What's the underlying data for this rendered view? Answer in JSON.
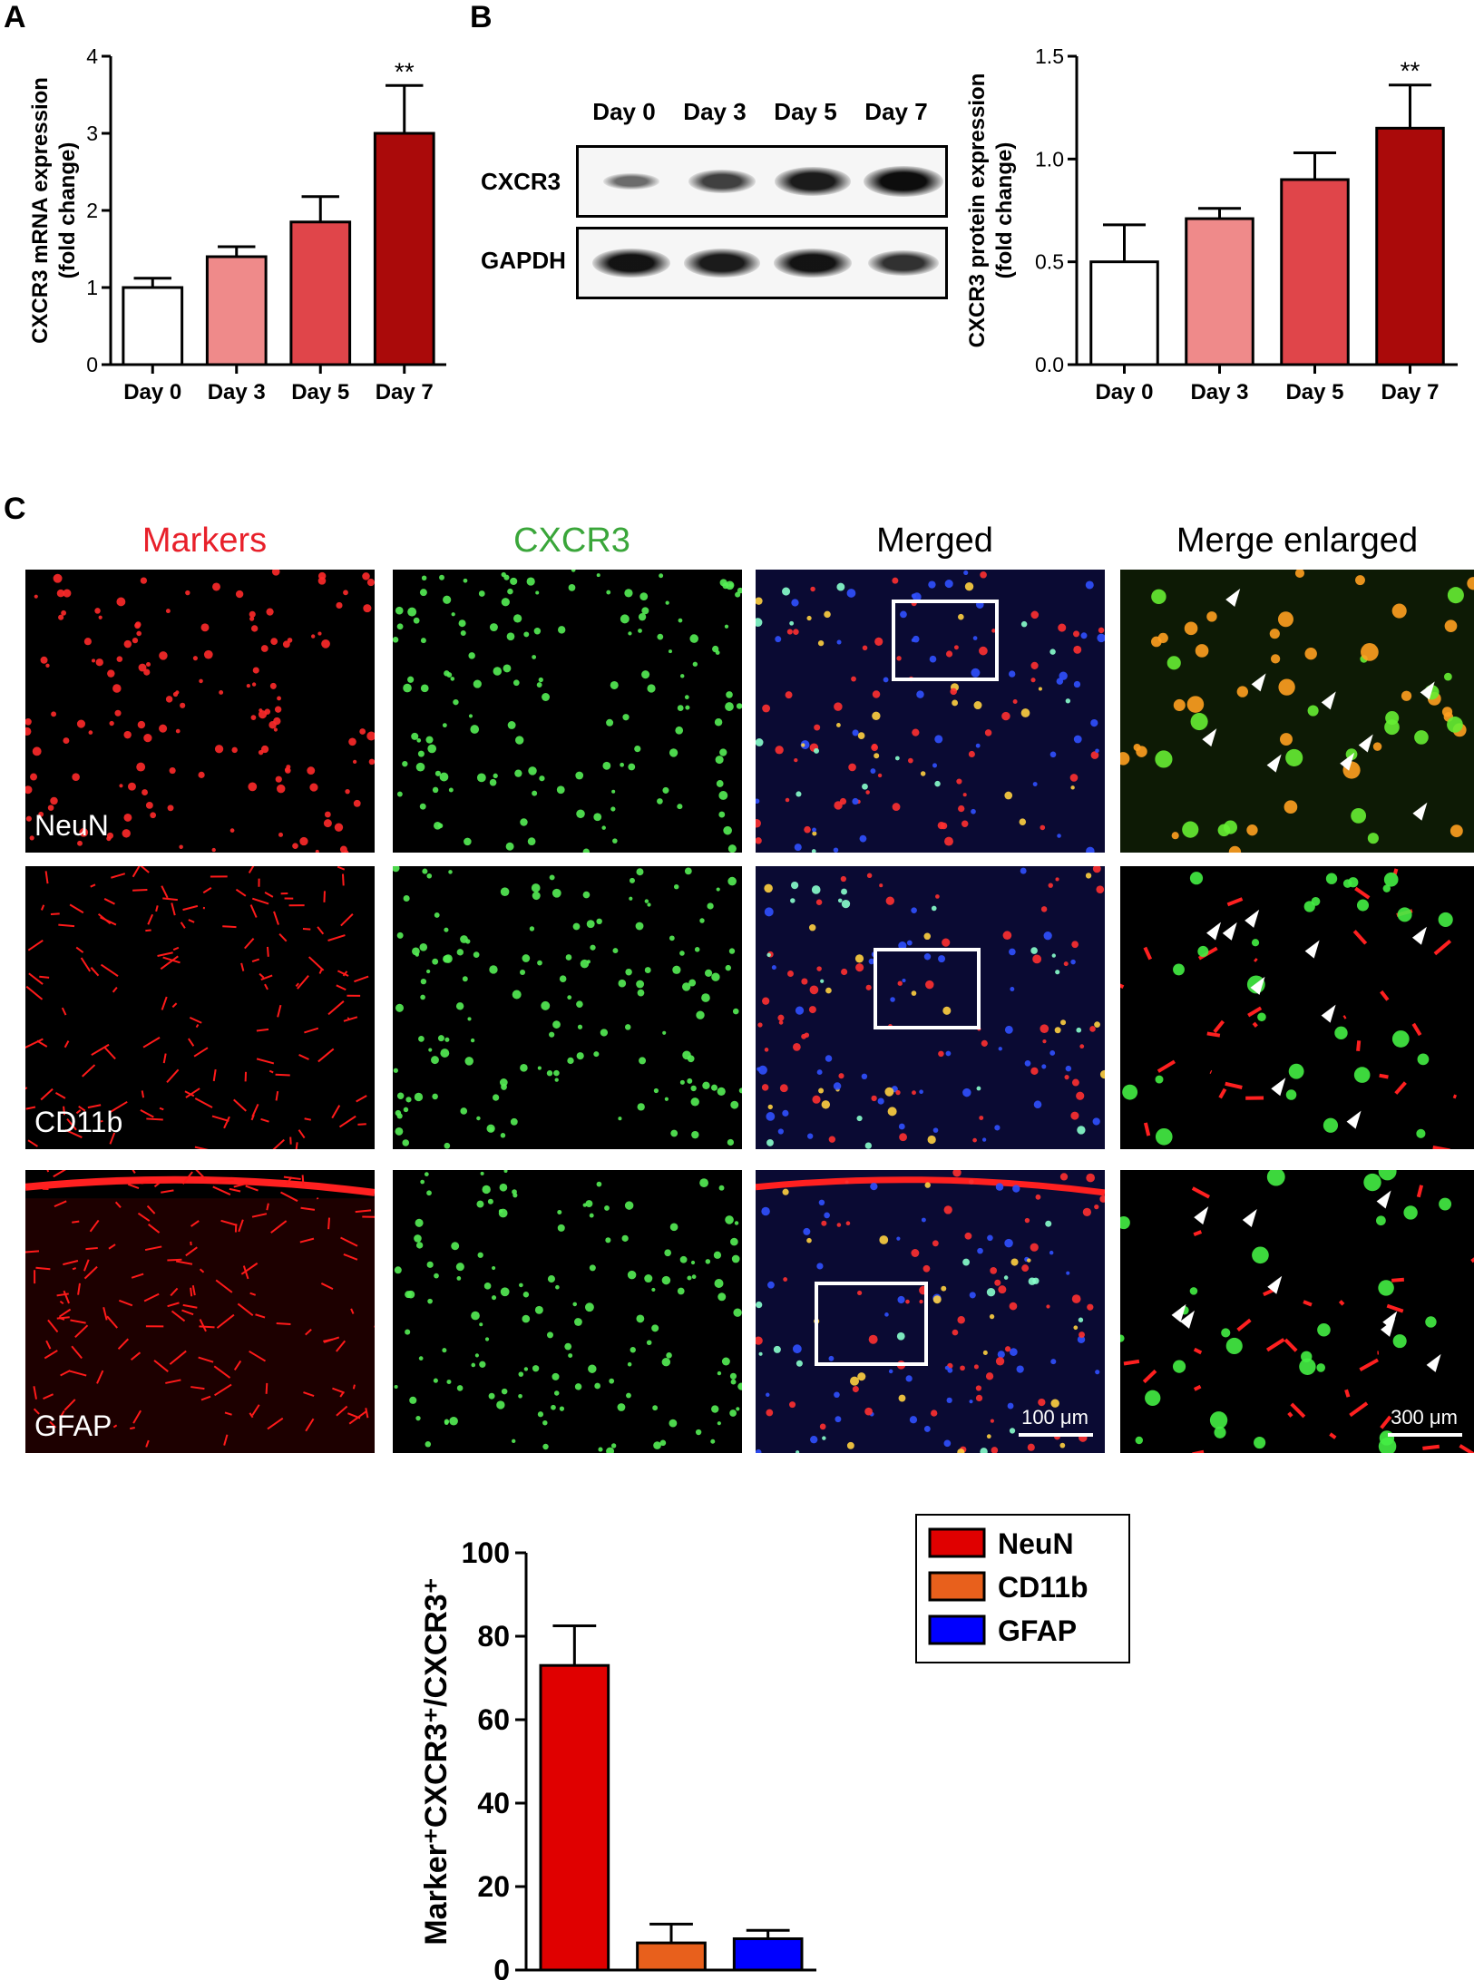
{
  "panels": {
    "a": {
      "label": "A"
    },
    "b": {
      "label": "B"
    },
    "c": {
      "label": "C"
    }
  },
  "chart_data": [
    {
      "type": "bar",
      "panel": "A",
      "categories": [
        "Day 0",
        "Day 3",
        "Day 5",
        "Day 7"
      ],
      "values": [
        1.0,
        1.4,
        1.85,
        3.0
      ],
      "errors": [
        0.12,
        0.13,
        0.33,
        0.62
      ],
      "colors": [
        "#ffffff",
        "#ef8a8a",
        "#e0454a",
        "#aa0a0a"
      ],
      "annotations": [
        "",
        "",
        "",
        "**"
      ],
      "ylabel_lines": [
        "CXCR3  mRNA expression",
        "(fold change)"
      ],
      "ylim": [
        0,
        4
      ],
      "yticks": [
        0,
        1,
        2,
        3,
        4
      ]
    },
    {
      "type": "bar",
      "panel": "B",
      "categories": [
        "Day 0",
        "Day 3",
        "Day 5",
        "Day 7"
      ],
      "values": [
        0.5,
        0.71,
        0.9,
        1.15
      ],
      "errors": [
        0.18,
        0.05,
        0.13,
        0.21
      ],
      "colors": [
        "#ffffff",
        "#ef8a8a",
        "#e0454a",
        "#aa0a0a"
      ],
      "annotations": [
        "",
        "",
        "",
        "**"
      ],
      "ylabel_lines": [
        "CXCR3  protein expression",
        "(fold change)"
      ],
      "ylim": [
        0,
        1.5
      ],
      "yticks": [
        "0.0",
        "0.5",
        "1.0",
        "1.5"
      ]
    },
    {
      "type": "bar",
      "panel": "C-quantification",
      "categories": [
        "NeuN",
        "CD11b",
        "GFAP"
      ],
      "values": [
        73,
        6.5,
        7.5
      ],
      "errors": [
        9.5,
        4.5,
        2
      ],
      "colors": [
        "#e00000",
        "#e8601c",
        "#0000ff"
      ],
      "ylabel": "Marker⁺CXCR3⁺/CXCR3⁺",
      "ylim": [
        0,
        100
      ],
      "yticks": [
        0,
        20,
        40,
        60,
        80,
        100
      ],
      "legend": [
        {
          "name": "NeuN",
          "color": "#e00000"
        },
        {
          "name": "CD11b",
          "color": "#e8601c"
        },
        {
          "name": "GFAP",
          "color": "#0000ff"
        }
      ],
      "legend_position": "top-right"
    }
  ],
  "western_blot": {
    "lanes": [
      "Day 0",
      "Day 3",
      "Day 5",
      "Day 7"
    ],
    "proteins": [
      "CXCR3",
      "GAPDH"
    ],
    "cxcr3_intensity": [
      0.35,
      0.65,
      0.9,
      1.0
    ],
    "gapdh_intensity": [
      0.95,
      0.9,
      0.95,
      0.75
    ]
  },
  "microscopy": {
    "column_titles": [
      {
        "text": "Markers",
        "color": "#e8202a"
      },
      {
        "text": "CXCR3",
        "color": "#3aa63a"
      },
      {
        "text": "Merged",
        "color": "#000000"
      },
      {
        "text": "Merge enlarged",
        "color": "#000000"
      }
    ],
    "row_labels": [
      "NeuN",
      "CD11b",
      "GFAP"
    ],
    "scale_bars": [
      "100 μm",
      "300 μm"
    ]
  }
}
